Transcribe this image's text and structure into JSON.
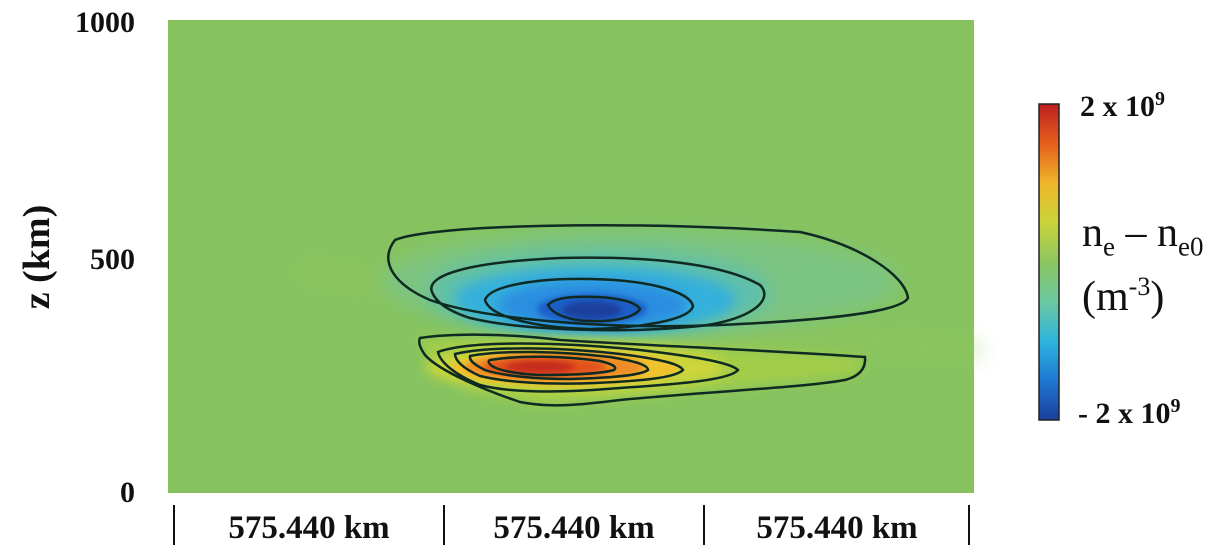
{
  "chart_data": {
    "type": "heatmap",
    "title": "",
    "ylabel": "z (km)",
    "yticks": [
      "1000",
      "500",
      "0"
    ],
    "ylim": [
      0,
      1000
    ],
    "x_categories": [
      "575.440 km",
      "575.440 km",
      "575.440 km"
    ],
    "grid": false,
    "background_value": 0,
    "features": [
      {
        "name": "depletion",
        "center_z_km": 390,
        "peak_value": -2000000000.0
      },
      {
        "name": "enhancement",
        "center_z_km": 265,
        "peak_value": 2000000000.0
      }
    ],
    "colorbar": {
      "max_text": "2 x 10",
      "max_exp": "9",
      "min_text": "- 2 x 10",
      "min_exp": "9",
      "label_n": "n",
      "label_sub1": "e",
      "label_minus": " – n",
      "label_sub2": "e0",
      "unit_open": "(m",
      "unit_exp": "-3",
      "unit_close": ")",
      "range": [
        -2000000000.0,
        2000000000.0
      ],
      "colors": [
        "#1a3f9c",
        "#1e78d2",
        "#2fb4de",
        "#6cc9a0",
        "#8cc660",
        "#c9d43a",
        "#efb52a",
        "#e65f1c",
        "#bd1f1f"
      ]
    }
  }
}
